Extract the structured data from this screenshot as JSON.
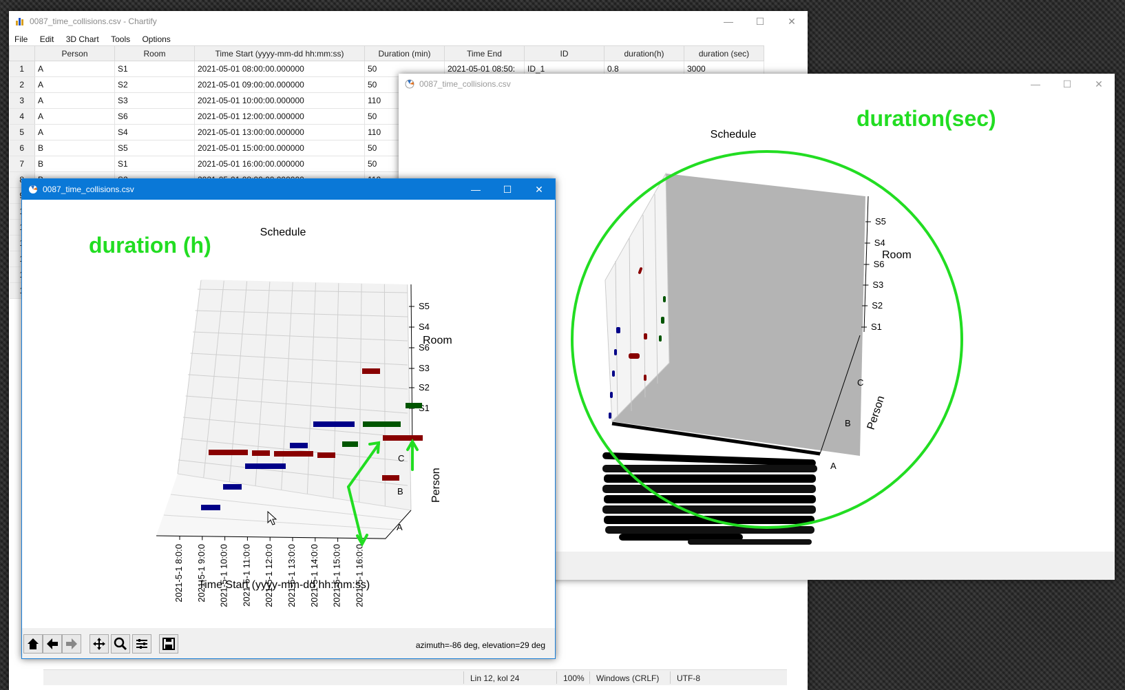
{
  "main_window": {
    "title": "0087_time_collisions.csv - Chartify",
    "menu": [
      "File",
      "Edit",
      "3D Chart",
      "Tools",
      "Options"
    ],
    "columns": [
      "Person",
      "Room",
      "Time Start (yyyy-mm-dd hh:mm:ss)",
      "Duration (min)",
      "Time End",
      "ID",
      "duration(h)",
      "duration (sec)"
    ],
    "row_numbers": [
      "1",
      "2",
      "3",
      "4",
      "5",
      "6",
      "7",
      "8",
      "9",
      "1",
      "1",
      "1",
      "1",
      "1",
      "1"
    ],
    "rows": [
      [
        "A",
        "S1",
        "2021-05-01 08:00:00.000000",
        "50",
        "2021-05-01 08:50:",
        "ID_1",
        "0.8",
        "3000"
      ],
      [
        "A",
        "S2",
        "2021-05-01 09:00:00.000000",
        "50",
        "",
        "",
        "",
        ""
      ],
      [
        "A",
        "S3",
        "2021-05-01 10:00:00.000000",
        "110",
        "",
        "",
        "",
        ""
      ],
      [
        "A",
        "S6",
        "2021-05-01 12:00:00.000000",
        "50",
        "",
        "",
        "",
        ""
      ],
      [
        "A",
        "S4",
        "2021-05-01 13:00:00.000000",
        "110",
        "",
        "",
        "",
        ""
      ],
      [
        "B",
        "S5",
        "2021-05-01 15:00:00.000000",
        "50",
        "",
        "",
        "",
        ""
      ],
      [
        "B",
        "S1",
        "2021-05-01 16:00:00.000000",
        "50",
        "",
        "",
        "",
        ""
      ],
      [
        "B",
        "S2",
        "2021-05-01 08:00:00.000000",
        "110",
        "",
        "",
        "",
        ""
      ]
    ],
    "status": {
      "position": "Lin 12, kol 24",
      "zoom": "100%",
      "line_ending": "Windows (CRLF)",
      "encoding": "UTF-8"
    }
  },
  "fig_left": {
    "title": "0087_time_collisions.csv",
    "annotation": "duration (h)",
    "coords": "azimuth=-86 deg, elevation=29 deg",
    "chart_data": {
      "type": "bar",
      "title": "Schedule",
      "xlabel": "Time Start (yyyy-mm-dd hh:mm:ss)",
      "ylabel": "Person",
      "zlabel": "Room",
      "x_ticks": [
        "2021-5-1 8:0:0",
        "2021-5-1 9:0:0",
        "2021-5-1 10:0:0",
        "2021-5-1 11:0:0",
        "2021-5-1 12:0:0",
        "2021-5-1 13:0:0",
        "2021-5-1 14:0:0",
        "2021-5-1 15:0:0",
        "2021-5-1 16:0:0"
      ],
      "y_ticks": [
        "A",
        "B",
        "C"
      ],
      "z_ticks": [
        "S1",
        "S2",
        "S3",
        "S6",
        "S4",
        "S5"
      ]
    }
  },
  "fig_right": {
    "title": "0087_time_collisions.csv",
    "annotation": "duration(sec)",
    "chart_data": {
      "type": "bar",
      "title": "Schedule",
      "ylabel": "Person",
      "zlabel": "Room",
      "y_ticks": [
        "A",
        "B",
        "C"
      ],
      "z_ticks": [
        "S1",
        "S2",
        "S3",
        "S6",
        "S4",
        "S5"
      ]
    }
  },
  "colors": {
    "annotation": "#22dd22",
    "person_a": "#000088",
    "person_b": "#880000",
    "person_c": "#005500",
    "titlebar_active": "#0a78d7"
  }
}
